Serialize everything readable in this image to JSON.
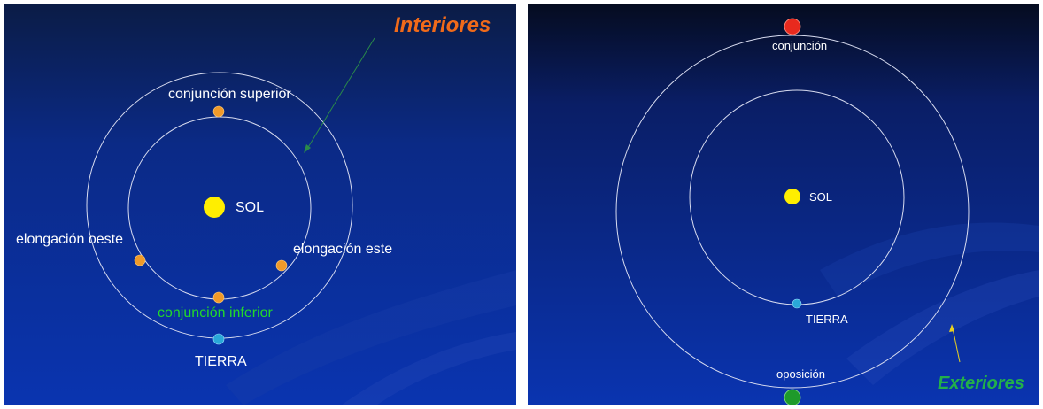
{
  "left_panel": {
    "title": "Interiores",
    "labels": {
      "superior_conjunction": "conjunción superior",
      "sun": "SOL",
      "west_elongation": "elongación oeste",
      "east_elongation": "elongación este",
      "inferior_conjunction": "conjunción inferior",
      "earth": "TIERRA"
    }
  },
  "right_panel": {
    "title": "Exteriores",
    "labels": {
      "conjunction": "conjunción",
      "sun": "SOL",
      "earth": "TIERRA",
      "opposition": "oposición"
    }
  },
  "colors": {
    "background_top": "#0a1a3c",
    "background_bottom": "#0a2fa0",
    "orbit": "#d8dcf0",
    "sun": "#ffee00",
    "inner_planet": "#f09a2a",
    "earth": "#2aa8d8",
    "conjunction_planet": "#e82a1e",
    "opposition_planet": "#1e9a2a",
    "title_interiores": "#f06a1a",
    "title_exteriores": "#22b04a",
    "inferior_label": "#22d82a",
    "arrow_left": "#2a8a4a",
    "arrow_right": "#e8d020"
  }
}
